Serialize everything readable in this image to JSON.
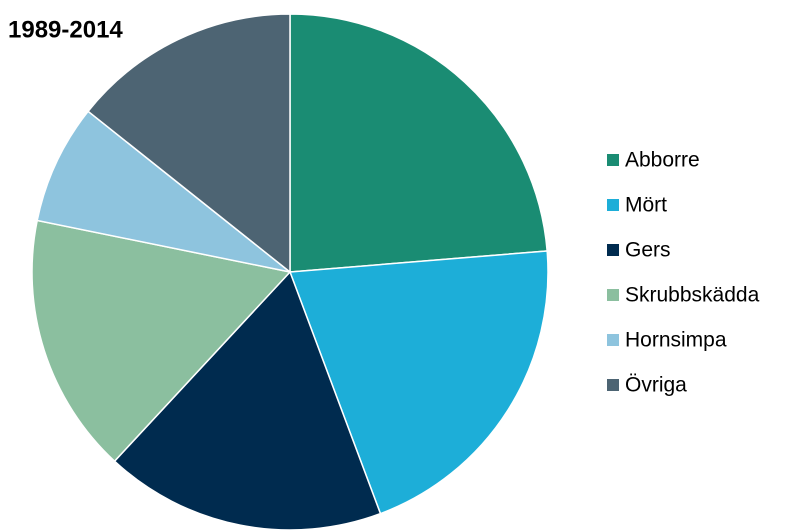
{
  "chart_data": {
    "type": "pie",
    "title": "1989-2014",
    "categories": [
      "Abborre",
      "Mört",
      "Gers",
      "Skrubbskädda",
      "Hornsimpa",
      "Övriga"
    ],
    "values": [
      23.7,
      20.6,
      17.6,
      16.3,
      7.5,
      14.3
    ],
    "colors": [
      "#1a8c73",
      "#1daed8",
      "#002b4f",
      "#8bbf9f",
      "#8ec4de",
      "#4d6473"
    ],
    "legend": "right"
  }
}
